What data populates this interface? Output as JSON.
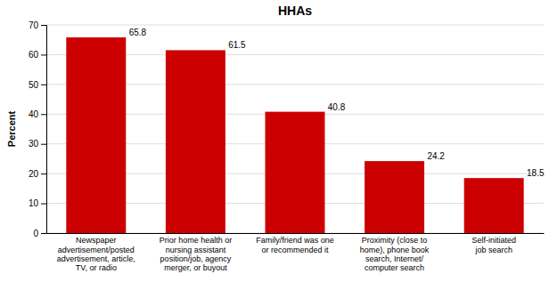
{
  "chart_data": {
    "type": "bar",
    "title": "HHAs",
    "ylabel": "Percent",
    "categories": [
      "Newspaper\nadvertisement/posted\nadvertisement, article,\nTV, or radio",
      "Prior home health or\nnursing assistant\nposition/job, agency\nmerger, or buyout",
      "Family/friend was one\nor recommended it",
      "Proximity (close to\nhome), phone book\nsearch, Internet/\ncomputer search",
      "Self-initiated\njob search"
    ],
    "values": [
      65.8,
      61.5,
      40.8,
      24.2,
      18.5
    ],
    "color": "#cc0000",
    "ylim": [
      0,
      70
    ],
    "yticks": [
      0,
      10,
      20,
      30,
      40,
      50,
      60,
      70
    ],
    "grid": true,
    "data_labels": true
  }
}
